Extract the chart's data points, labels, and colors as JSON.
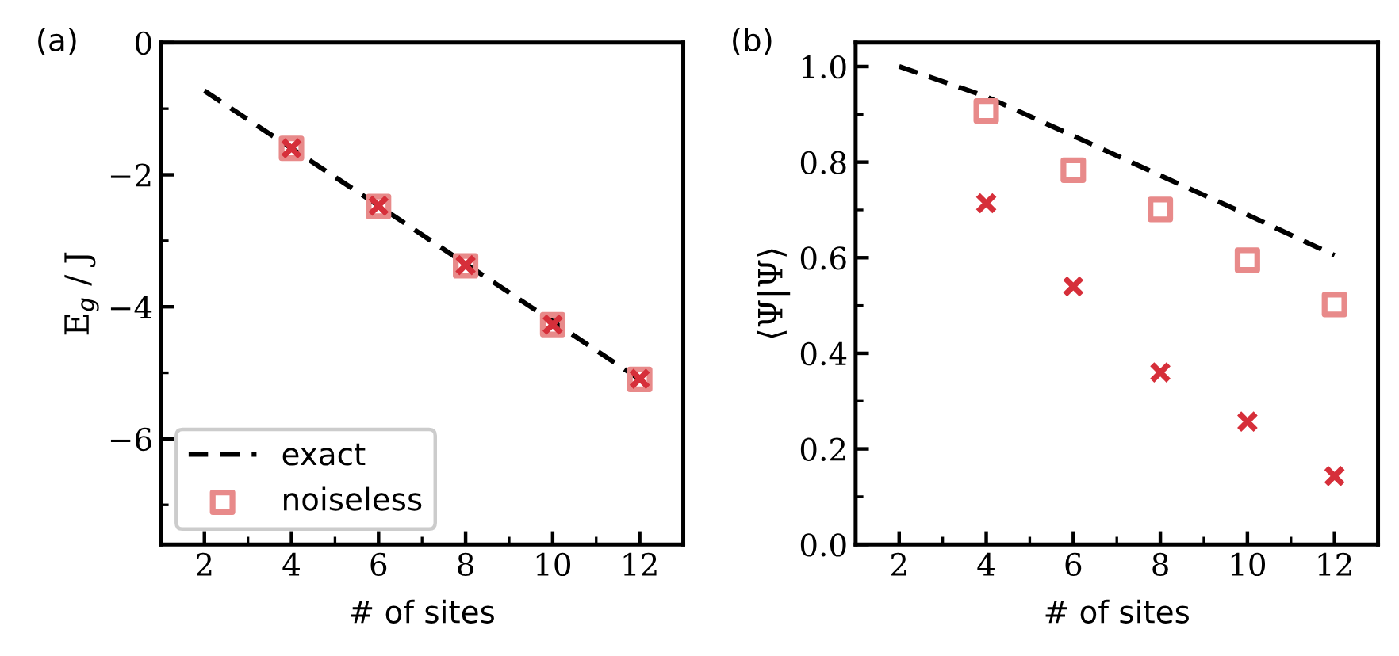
{
  "chart_data": [
    {
      "type": "line",
      "xlabel": "# of sites",
      "ylabel": "E$_{g}$ / J",
      "annotations": [
        "(a)"
      ],
      "xlim": [
        1,
        13
      ],
      "ylim": [
        -7.6,
        0
      ],
      "xticks": [
        2,
        {
          "value": 3,
          "label": null
        },
        4,
        {
          "value": 5,
          "label": null
        },
        6,
        {
          "value": 7,
          "label": null
        },
        8,
        {
          "value": 9,
          "label": null
        },
        10,
        {
          "value": 11,
          "label": null
        },
        12
      ],
      "yticks": [
        {
          "value": -7,
          "label": null
        },
        {
          "value": -6,
          "label": "−6"
        },
        {
          "value": -5,
          "label": null
        },
        {
          "value": -4,
          "label": "−4"
        },
        {
          "value": -3,
          "label": null
        },
        {
          "value": -2,
          "label": "−2"
        },
        {
          "value": -1,
          "label": null
        },
        0
      ],
      "grid": false,
      "legend": "bottom left",
      "series": [
        {
          "name": "exact",
          "line_style": "dashed",
          "marker": "none",
          "color": "#000000",
          "x": [
            2,
            4,
            6,
            8,
            10,
            12
          ],
          "values": [
            -0.73,
            -1.6,
            -2.47,
            -3.35,
            -4.22,
            -5.1
          ]
        },
        {
          "name": "noiseless",
          "type": "scatter",
          "marker": "square",
          "color": "#e88a8a",
          "x": [
            4,
            6,
            8,
            10,
            12
          ],
          "values": [
            -1.6,
            -2.48,
            -3.38,
            -4.27,
            -5.1
          ]
        },
        {
          "type": "scatter",
          "marker": "cross",
          "color": "#d62f3a",
          "x": [
            4,
            6,
            8,
            10,
            12
          ],
          "values": [
            -1.6,
            -2.47,
            -3.37,
            -4.27,
            -5.09
          ]
        }
      ]
    },
    {
      "type": "line",
      "xlabel": "# of sites",
      "ylabel": "⟨Ψ|Ψ⟩",
      "annotations": [
        "(b)"
      ],
      "xlim": [
        1,
        13
      ],
      "ylim": [
        0,
        1.05
      ],
      "xticks": [
        2,
        {
          "value": 3,
          "label": null
        },
        4,
        {
          "value": 5,
          "label": null
        },
        6,
        {
          "value": 7,
          "label": null
        },
        8,
        {
          "value": 9,
          "label": null
        },
        10,
        {
          "value": 11,
          "label": null
        },
        12
      ],
      "yticks": [
        {
          "value": 0,
          "label": "0.0"
        },
        {
          "value": 0.1,
          "label": null
        },
        0.2,
        {
          "value": 0.3,
          "label": null
        },
        0.4,
        {
          "value": 0.5,
          "label": null
        },
        0.6,
        {
          "value": 0.7,
          "label": null
        },
        0.8,
        {
          "value": 0.9,
          "label": null
        },
        {
          "value": 1,
          "label": "1.0"
        }
      ],
      "grid": false,
      "legend": false,
      "series": [
        {
          "line_style": "dashed",
          "marker": "none",
          "color": "#000000",
          "x": [
            2,
            4,
            6,
            8,
            10,
            12
          ],
          "values": [
            1.0,
            0.937,
            0.855,
            0.772,
            0.69,
            0.605
          ]
        },
        {
          "type": "scatter",
          "marker": "square",
          "color": "#e88a8a",
          "x": [
            4,
            6,
            8,
            10,
            12
          ],
          "values": [
            0.907,
            0.783,
            0.701,
            0.595,
            0.502
          ]
        },
        {
          "type": "scatter",
          "marker": "cross",
          "color": "#d62f3a",
          "x": [
            4,
            6,
            8,
            10,
            12
          ],
          "values": [
            0.714,
            0.54,
            0.36,
            0.257,
            0.143
          ]
        }
      ]
    }
  ]
}
